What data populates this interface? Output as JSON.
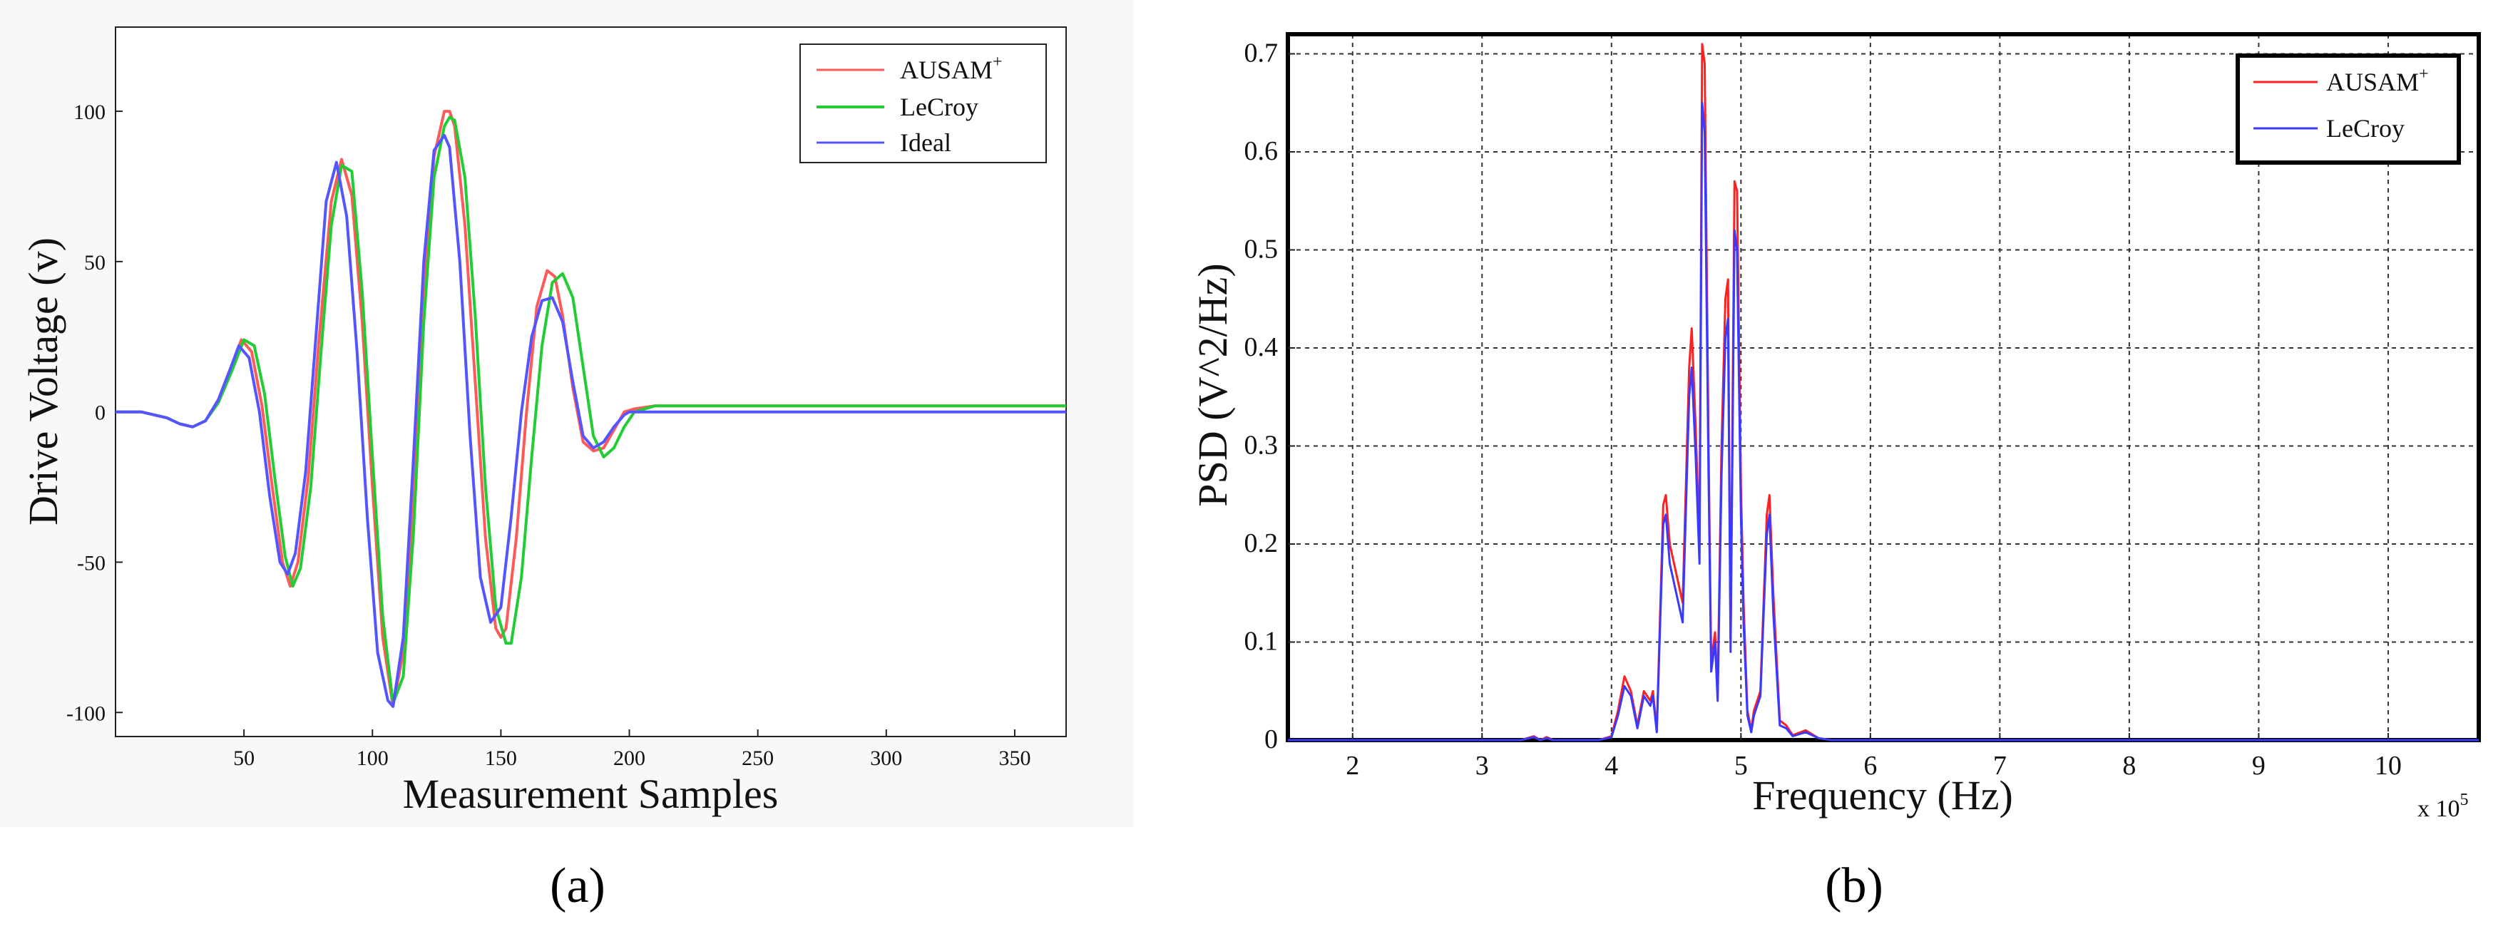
{
  "panels": {
    "a_label": "(a)",
    "b_label": "(b)"
  },
  "chart_data": [
    {
      "id": "a",
      "type": "line",
      "xlabel": "Measurement Samples",
      "ylabel": "Drive Voltage (v)",
      "xlim": [
        0,
        370
      ],
      "ylim": [
        -108,
        128
      ],
      "xticks": [
        50,
        100,
        150,
        200,
        250,
        300,
        350
      ],
      "yticks": [
        -100,
        -50,
        0,
        50,
        100
      ],
      "grid": false,
      "legend_position": "top-right",
      "series": [
        {
          "name": "AUSAM",
          "name_sup": "+",
          "color": "#ff5a5a",
          "x": [
            0,
            10,
            20,
            25,
            30,
            35,
            40,
            45,
            49,
            53,
            57,
            61,
            65,
            68,
            71,
            75,
            79,
            84,
            88,
            92,
            96,
            100,
            104,
            108,
            112,
            116,
            120,
            124,
            128,
            130,
            132,
            136,
            140,
            144,
            148,
            150,
            152,
            156,
            160,
            164,
            168,
            171,
            174,
            178,
            182,
            186,
            190,
            194,
            198,
            202,
            210,
            250,
            300,
            370
          ],
          "y": [
            0,
            0,
            -2,
            -4,
            -5,
            -3,
            4,
            15,
            24,
            20,
            2,
            -25,
            -50,
            -58,
            -50,
            -22,
            22,
            70,
            84,
            72,
            30,
            -25,
            -75,
            -98,
            -80,
            -25,
            42,
            85,
            100,
            100,
            95,
            62,
            10,
            -42,
            -72,
            -75,
            -72,
            -42,
            0,
            35,
            47,
            45,
            32,
            8,
            -10,
            -13,
            -12,
            -6,
            0,
            1,
            2,
            2,
            2,
            2
          ]
        },
        {
          "name": "LeCroy",
          "color": "#22cc33",
          "x": [
            0,
            10,
            20,
            25,
            30,
            35,
            40,
            45,
            50,
            54,
            58,
            62,
            66,
            69,
            72,
            76,
            80,
            84,
            88,
            92,
            96,
            100,
            104,
            108,
            112,
            116,
            120,
            124,
            128,
            130,
            132,
            136,
            140,
            144,
            148,
            152,
            154,
            158,
            162,
            166,
            170,
            174,
            178,
            182,
            186,
            190,
            194,
            198,
            202,
            206,
            210,
            250,
            300,
            370
          ],
          "y": [
            0,
            0,
            -2,
            -4,
            -5,
            -3,
            3,
            13,
            24,
            22,
            6,
            -22,
            -48,
            -58,
            -52,
            -25,
            20,
            62,
            82,
            80,
            40,
            -15,
            -68,
            -97,
            -88,
            -40,
            30,
            78,
            95,
            98,
            97,
            78,
            32,
            -25,
            -65,
            -77,
            -77,
            -55,
            -15,
            22,
            43,
            46,
            38,
            15,
            -8,
            -15,
            -12,
            -5,
            0,
            1,
            2,
            2,
            2,
            2
          ]
        },
        {
          "name": "Ideal",
          "color": "#5555ff",
          "x": [
            0,
            10,
            20,
            25,
            30,
            35,
            40,
            45,
            48,
            52,
            56,
            60,
            64,
            67,
            70,
            74,
            78,
            82,
            86,
            90,
            94,
            98,
            102,
            106,
            108,
            112,
            116,
            120,
            124,
            128,
            130,
            134,
            138,
            142,
            146,
            150,
            154,
            158,
            162,
            166,
            170,
            174,
            178,
            182,
            186,
            190,
            194,
            198,
            200,
            210,
            250,
            300,
            370
          ],
          "y": [
            0,
            0,
            -2,
            -4,
            -5,
            -3,
            4,
            15,
            22,
            18,
            0,
            -28,
            -50,
            -54,
            -47,
            -20,
            25,
            70,
            83,
            65,
            20,
            -35,
            -80,
            -96,
            -98,
            -75,
            -15,
            50,
            87,
            92,
            88,
            50,
            -8,
            -55,
            -70,
            -65,
            -35,
            0,
            25,
            37,
            38,
            30,
            10,
            -8,
            -12,
            -10,
            -5,
            -1,
            0,
            0,
            0,
            0,
            0
          ]
        }
      ]
    },
    {
      "id": "b",
      "type": "line",
      "xlabel": "Frequency (Hz)",
      "ylabel": "PSD (V^2/Hz)",
      "x_multiplier_label": "x 10",
      "x_multiplier_exp": "5",
      "xlim": [
        1.5,
        10.7
      ],
      "ylim": [
        0,
        0.72
      ],
      "xticks": [
        2,
        3,
        4,
        5,
        6,
        7,
        8,
        9,
        10
      ],
      "yticks": [
        0,
        0.1,
        0.2,
        0.3,
        0.4,
        0.5,
        0.6,
        0.7
      ],
      "grid": true,
      "legend_position": "top-right",
      "series": [
        {
          "name": "AUSAM",
          "name_sup": "+",
          "color": "#ff2020",
          "x": [
            1.5,
            3.3,
            3.4,
            3.45,
            3.5,
            3.55,
            3.9,
            4.0,
            4.05,
            4.1,
            4.15,
            4.2,
            4.25,
            4.3,
            4.32,
            4.35,
            4.4,
            4.42,
            4.45,
            4.5,
            4.55,
            4.6,
            4.62,
            4.65,
            4.68,
            4.7,
            4.72,
            4.75,
            4.77,
            4.8,
            4.82,
            4.85,
            4.88,
            4.9,
            4.92,
            4.95,
            4.97,
            5.0,
            5.02,
            5.05,
            5.08,
            5.1,
            5.15,
            5.2,
            5.22,
            5.25,
            5.3,
            5.35,
            5.4,
            5.5,
            5.6,
            5.7,
            6.0,
            10.7
          ],
          "y": [
            0,
            0,
            0.004,
            0,
            0.003,
            0,
            0,
            0.004,
            0.03,
            0.065,
            0.05,
            0.015,
            0.05,
            0.04,
            0.05,
            0.01,
            0.24,
            0.25,
            0.2,
            0.17,
            0.14,
            0.38,
            0.42,
            0.32,
            0.2,
            0.71,
            0.69,
            0.3,
            0.08,
            0.11,
            0.05,
            0.3,
            0.45,
            0.47,
            0.1,
            0.57,
            0.56,
            0.26,
            0.14,
            0.03,
            0.01,
            0.03,
            0.05,
            0.23,
            0.25,
            0.15,
            0.02,
            0.015,
            0.005,
            0.01,
            0.002,
            0,
            0,
            0
          ]
        },
        {
          "name": "LeCroy",
          "color": "#3a3aff",
          "x": [
            1.5,
            3.3,
            3.4,
            3.45,
            3.5,
            3.55,
            3.9,
            4.0,
            4.05,
            4.1,
            4.15,
            4.2,
            4.25,
            4.3,
            4.32,
            4.35,
            4.4,
            4.42,
            4.45,
            4.5,
            4.55,
            4.6,
            4.62,
            4.65,
            4.68,
            4.7,
            4.72,
            4.75,
            4.77,
            4.8,
            4.82,
            4.85,
            4.88,
            4.9,
            4.92,
            4.95,
            4.97,
            5.0,
            5.02,
            5.05,
            5.08,
            5.1,
            5.15,
            5.2,
            5.22,
            5.25,
            5.3,
            5.35,
            5.4,
            5.5,
            5.6,
            5.7,
            6.0,
            10.7
          ],
          "y": [
            0,
            0,
            0.003,
            0,
            0.002,
            0,
            0,
            0.003,
            0.025,
            0.055,
            0.045,
            0.012,
            0.045,
            0.035,
            0.045,
            0.008,
            0.22,
            0.23,
            0.18,
            0.15,
            0.12,
            0.35,
            0.38,
            0.29,
            0.18,
            0.65,
            0.62,
            0.27,
            0.07,
            0.1,
            0.04,
            0.27,
            0.41,
            0.43,
            0.09,
            0.52,
            0.5,
            0.23,
            0.12,
            0.025,
            0.008,
            0.025,
            0.045,
            0.21,
            0.23,
            0.13,
            0.015,
            0.012,
            0.004,
            0.008,
            0.002,
            0,
            0,
            0
          ]
        }
      ]
    }
  ]
}
